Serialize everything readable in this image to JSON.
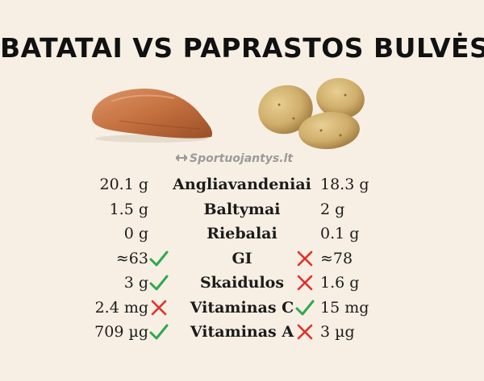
{
  "title": "BATATAI VS PAPRASTOS BULVĖS",
  "watermark": "Sportuojantys.lt",
  "illustrations": {
    "left_icon": "sweet-potato-illustration",
    "right_icon": "potatoes-illustration"
  },
  "colors": {
    "background": "#f7efe4",
    "check": "#2fa84f",
    "cross": "#e0322b"
  },
  "rows": [
    {
      "label": "Angliavandeniai",
      "left": "20.1 g",
      "right": "18.3 g",
      "left_mark": "",
      "right_mark": ""
    },
    {
      "label": "Baltymai",
      "left": "1.5 g",
      "right": "2 g",
      "left_mark": "",
      "right_mark": ""
    },
    {
      "label": "Riebalai",
      "left": "0 g",
      "right": "0.1 g",
      "left_mark": "",
      "right_mark": ""
    },
    {
      "label": "GI",
      "left": "≈63",
      "right": "≈78",
      "left_mark": "check",
      "right_mark": "cross"
    },
    {
      "label": "Skaidulos",
      "left": "3 g",
      "right": "1.6 g",
      "left_mark": "check",
      "right_mark": "cross"
    },
    {
      "label": "Vitaminas C",
      "left": "2.4 mg",
      "right": "15 mg",
      "left_mark": "cross",
      "right_mark": "check"
    },
    {
      "label": "Vitaminas A",
      "left": "709 µg",
      "right": "3 µg",
      "left_mark": "check",
      "right_mark": "cross"
    }
  ]
}
